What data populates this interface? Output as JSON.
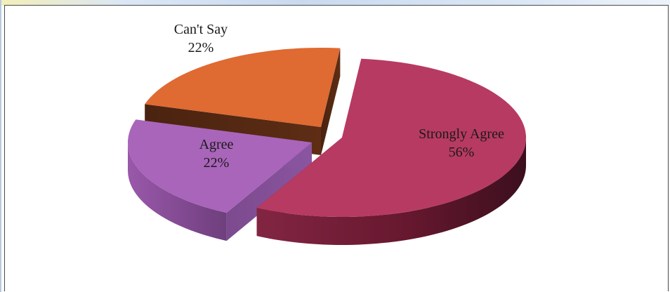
{
  "chart_data": {
    "type": "pie",
    "title": "",
    "slices": [
      {
        "name": "Strongly Agree",
        "value": 56,
        "label": "56%",
        "color": "#b73a62"
      },
      {
        "name": "Agree",
        "value": 22,
        "label": "22%",
        "color": "#a965ba"
      },
      {
        "name": "Can't Say",
        "value": 22,
        "label": "22%",
        "color": "#df6a32"
      }
    ],
    "style": "3d-exploded",
    "legend": "none"
  }
}
